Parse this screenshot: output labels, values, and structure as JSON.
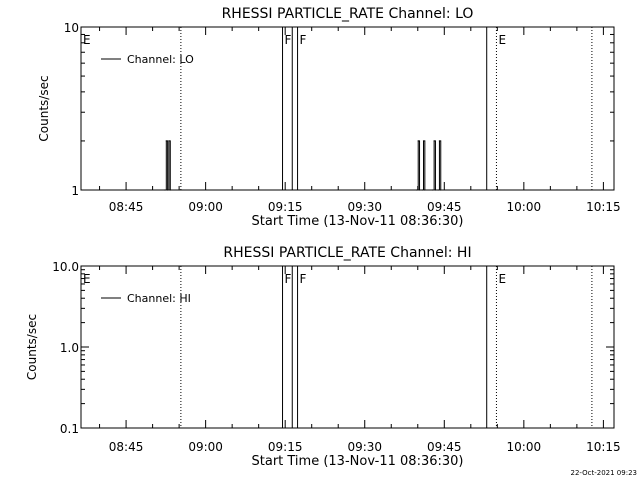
{
  "chart_data": [
    {
      "type": "line",
      "title": "RHESSI PARTICLE_RATE Channel: LO",
      "xlabel": "Start Time (13-Nov-11 08:36:30)",
      "ylabel": "Counts/sec",
      "yscale": "log",
      "ylim": [
        1,
        10
      ],
      "yticks": [
        {
          "v": 1,
          "label": "1"
        },
        {
          "v": 10,
          "label": "10"
        }
      ],
      "xlim": [
        "08:36:30",
        "10:17:00"
      ],
      "xticks": [
        "08:45",
        "09:00",
        "09:15",
        "09:30",
        "09:45",
        "10:00",
        "10:15"
      ],
      "legend": {
        "label": "Channel: LO",
        "placement": "top-left"
      },
      "series": [
        {
          "name": "Channel: LO",
          "x": [
            "08:52:20",
            "08:52:35",
            "08:52:50",
            "08:53:05",
            "08:53:20",
            "09:39:50",
            "09:40:05",
            "09:40:20",
            "09:40:50",
            "09:41:05",
            "09:41:20",
            "09:42:50",
            "09:43:05",
            "09:43:20",
            "09:43:50",
            "09:44:05",
            "09:44:20"
          ],
          "y": [
            1,
            2,
            1,
            2,
            1,
            1,
            2,
            1,
            1,
            2,
            1,
            1,
            2,
            1,
            1,
            2,
            1
          ]
        }
      ],
      "markers": [
        {
          "label": "E",
          "time": "08:36:30",
          "line": "none"
        },
        {
          "label": "F",
          "time": "09:14:30",
          "line": "solid"
        },
        {
          "label": "",
          "time": "09:16:20",
          "line": "solid"
        },
        {
          "label": "F",
          "time": "09:17:20",
          "line": "solid"
        },
        {
          "label": "",
          "time": "09:53:00",
          "line": "solid"
        },
        {
          "label": "E",
          "time": "09:54:50",
          "line": "dotted"
        },
        {
          "label": "",
          "time": "08:55:20",
          "line": "dotted"
        },
        {
          "label": "",
          "time": "10:12:50",
          "line": "dotted"
        }
      ]
    },
    {
      "type": "line",
      "title": "RHESSI PARTICLE_RATE Channel: HI",
      "xlabel": "Start Time (13-Nov-11 08:36:30)",
      "ylabel": "Counts/sec",
      "yscale": "log",
      "ylim": [
        0.1,
        10
      ],
      "yticks": [
        {
          "v": 0.1,
          "label": "0.1"
        },
        {
          "v": 1,
          "label": "1.0"
        },
        {
          "v": 10,
          "label": "10.0"
        }
      ],
      "xlim": [
        "08:36:30",
        "10:17:00"
      ],
      "xticks": [
        "08:45",
        "09:00",
        "09:15",
        "09:30",
        "09:45",
        "10:00",
        "10:15"
      ],
      "legend": {
        "label": "Channel: HI",
        "placement": "top-left"
      },
      "series": [
        {
          "name": "Channel: HI",
          "x": [],
          "y": []
        }
      ],
      "markers": [
        {
          "label": "E",
          "time": "08:36:30",
          "line": "none"
        },
        {
          "label": "F",
          "time": "09:14:30",
          "line": "solid"
        },
        {
          "label": "",
          "time": "09:16:20",
          "line": "solid"
        },
        {
          "label": "F",
          "time": "09:17:20",
          "line": "solid"
        },
        {
          "label": "",
          "time": "09:53:00",
          "line": "solid"
        },
        {
          "label": "E",
          "time": "09:54:50",
          "line": "dotted"
        },
        {
          "label": "",
          "time": "08:55:20",
          "line": "dotted"
        },
        {
          "label": "",
          "time": "10:12:50",
          "line": "dotted"
        }
      ]
    }
  ],
  "footer": {
    "timestamp": "22-Oct-2021 09:23"
  }
}
